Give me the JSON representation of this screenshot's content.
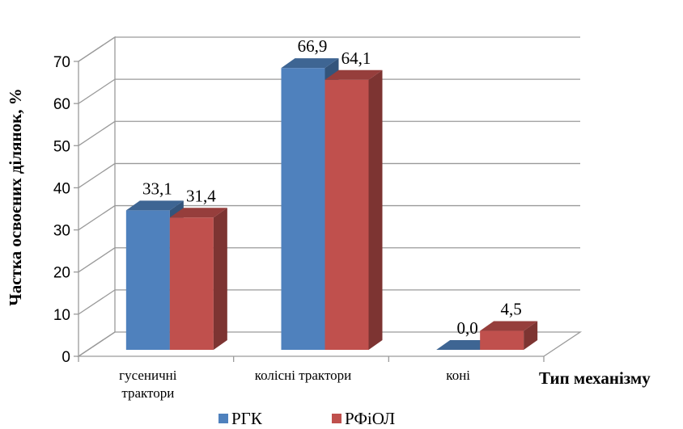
{
  "chart_data": {
    "type": "bar",
    "categories": [
      "гусеничні трактори",
      "колісні трактори",
      "коні"
    ],
    "category_lines": [
      [
        "гусеничні",
        "трактори"
      ],
      [
        "колісні трактори"
      ],
      [
        "коні"
      ]
    ],
    "series": [
      {
        "name": "РГК",
        "values": [
          33.1,
          66.9,
          0.0
        ],
        "labels": [
          "33,1",
          "66,9",
          "0,0"
        ],
        "color": "#4F81BD"
      },
      {
        "name": "РФіОЛ",
        "values": [
          31.4,
          64.1,
          4.5
        ],
        "labels": [
          "31,4",
          "64,1",
          "4,5"
        ],
        "color": "#C0504D"
      }
    ],
    "title": "",
    "xlabel": "Тип механізму",
    "ylabel": "Частка освоєних ділянок, %",
    "ylim": [
      0,
      70
    ],
    "yticks": [
      0,
      10,
      20,
      30,
      40,
      50,
      60,
      70
    ],
    "grid": true,
    "legend": "bottom",
    "style": "3d-clustered-column"
  }
}
